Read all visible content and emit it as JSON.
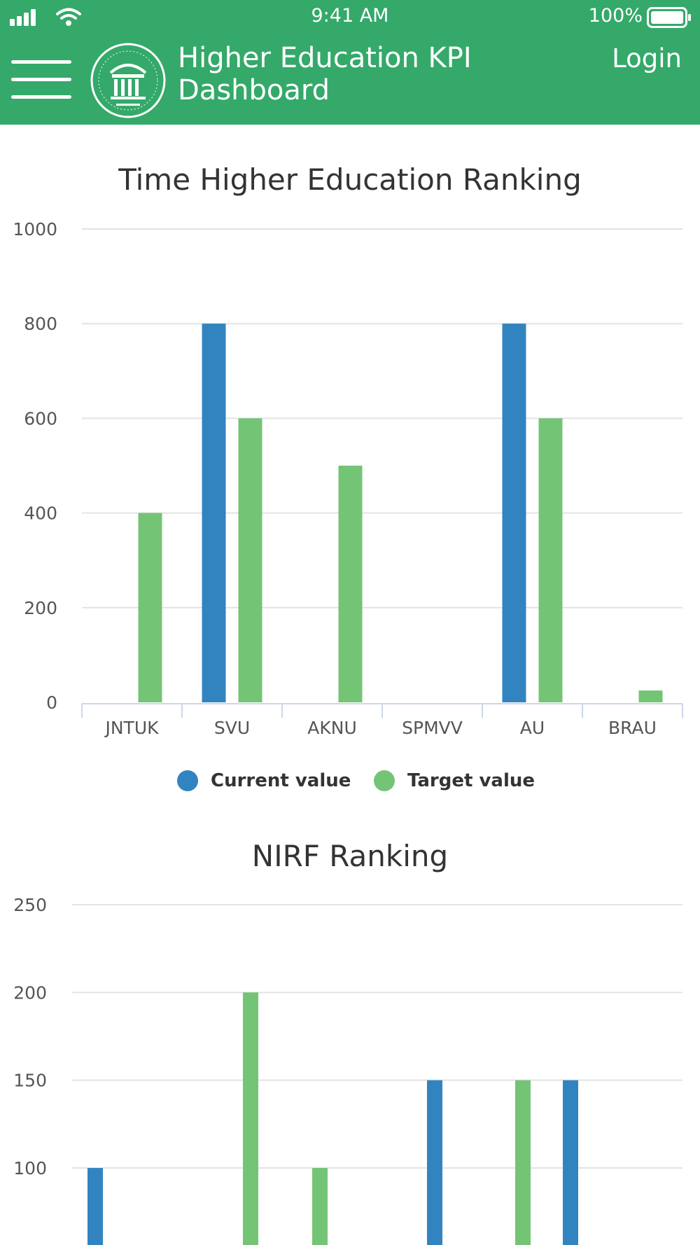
{
  "status_bar": {
    "time": "9:41 AM",
    "battery": "100%"
  },
  "header": {
    "title_line1": "Higher Education KPI",
    "title_line2": "Dashboard",
    "login_label": "Login"
  },
  "colors": {
    "current": "#3284c0",
    "target": "#74c476",
    "header_bg": "#34a96a"
  },
  "chart_data": [
    {
      "type": "bar",
      "title": "Time Higher Education Ranking",
      "categories": [
        "JNTUK",
        "SVU",
        "AKNU",
        "SPMVV",
        "AU",
        "BRAU"
      ],
      "series": [
        {
          "name": "Current value",
          "values": [
            0,
            800,
            0,
            0,
            800,
            0
          ]
        },
        {
          "name": "Target value",
          "values": [
            400,
            600,
            500,
            0,
            600,
            25
          ]
        }
      ],
      "yticks": [
        0,
        200,
        400,
        600,
        800,
        1000
      ],
      "ylim": [
        0,
        1000
      ],
      "legend": "bottom"
    },
    {
      "type": "bar",
      "title": "NIRF Ranking",
      "bars": [
        {
          "series": "current",
          "value": 100
        },
        {
          "series": "target",
          "value": 200
        },
        {
          "series": "target",
          "value": 100
        },
        {
          "series": "current",
          "value": 150
        },
        {
          "series": "target",
          "value": 150
        },
        {
          "series": "current",
          "value": 150
        }
      ],
      "yticks": [
        100,
        150,
        200,
        250
      ],
      "ylim": [
        0,
        250
      ]
    }
  ]
}
